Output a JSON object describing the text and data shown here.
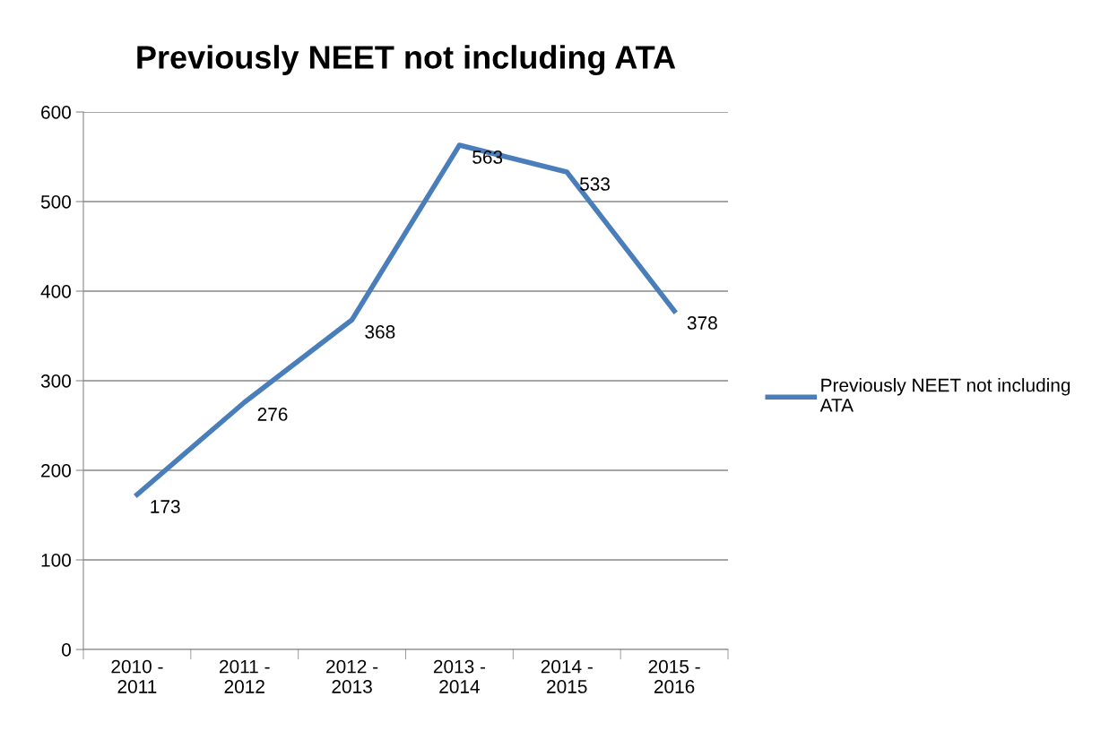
{
  "chart_data": {
    "type": "line",
    "title": "Previously NEET not including ATA",
    "categories": [
      "2010 - 2011",
      "2011 - 2012",
      "2012 - 2013",
      "2013 - 2014",
      "2014 - 2015",
      "2015 - 2016"
    ],
    "series": [
      {
        "name": "Previously NEET not including ATA",
        "color": "#4a7ebb",
        "values": [
          173,
          276,
          368,
          563,
          533,
          378
        ]
      }
    ],
    "ylim": [
      0,
      600
    ],
    "yticks": [
      0,
      100,
      200,
      300,
      400,
      500,
      600
    ],
    "grid": "y",
    "legend": "right",
    "data_labels": true,
    "marker": "none",
    "line_style": "solid"
  }
}
